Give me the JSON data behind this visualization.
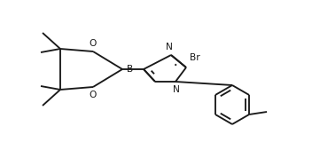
{
  "bg_color": "#ffffff",
  "line_color": "#1a1a1a",
  "line_width": 1.35,
  "font_size": 7.2,
  "figsize": [
    3.52,
    1.6
  ],
  "dpi": 100,
  "xlim": [
    0.0,
    3.52
  ],
  "ylim": [
    0.0,
    1.6
  ]
}
